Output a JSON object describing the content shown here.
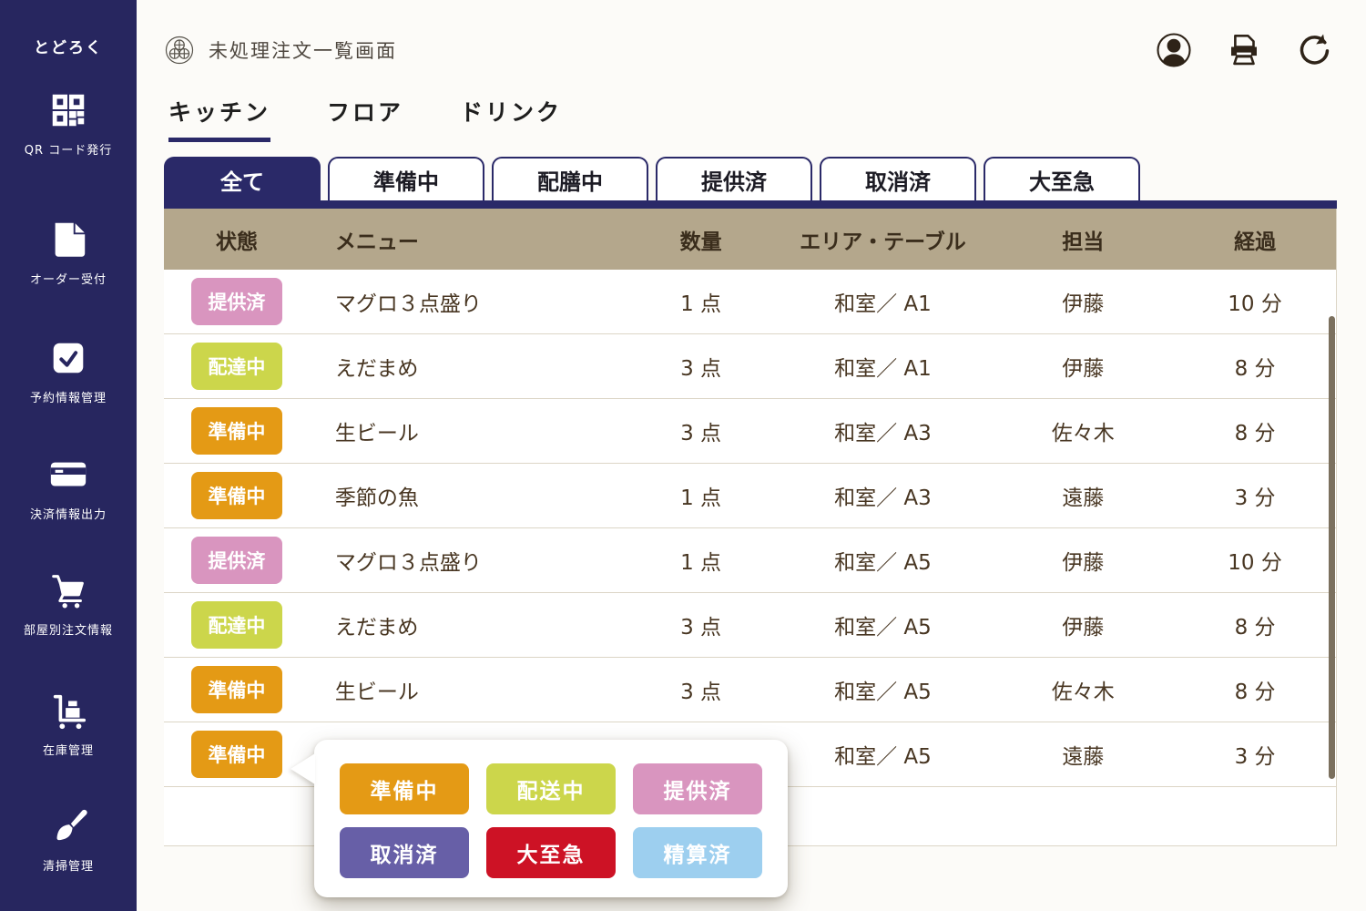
{
  "app_name": "とどろく",
  "sidebar": {
    "items": [
      {
        "icon": "qr-code-icon",
        "label": "QR コード発行"
      },
      {
        "icon": "order-document-icon",
        "label": "オーダー受付"
      },
      {
        "icon": "reservation-check-icon",
        "label": "予約情報管理"
      },
      {
        "icon": "payment-card-icon",
        "label": "決済情報出力"
      },
      {
        "icon": "room-order-cart-icon",
        "label": "部屋別注文情報"
      },
      {
        "icon": "inventory-trolley-icon",
        "label": "在庫管理"
      },
      {
        "icon": "cleaning-brush-icon",
        "label": "清掃管理"
      }
    ]
  },
  "header": {
    "title": "未処理注文一覧画面",
    "action_icons": [
      "user-avatar-icon",
      "printer-icon",
      "refresh-icon"
    ]
  },
  "category_tabs": {
    "items": [
      {
        "label": "キッチン",
        "active": true
      },
      {
        "label": "フロア",
        "active": false
      },
      {
        "label": "ドリンク",
        "active": false
      }
    ]
  },
  "status_filter_tabs": {
    "items": [
      {
        "label": "全て",
        "active": true
      },
      {
        "label": "準備中",
        "active": false
      },
      {
        "label": "配膳中",
        "active": false
      },
      {
        "label": "提供済",
        "active": false
      },
      {
        "label": "取消済",
        "active": false
      },
      {
        "label": "大至急",
        "active": false
      }
    ]
  },
  "table": {
    "columns": [
      "状態",
      "メニュー",
      "数量",
      "エリア・テーブル",
      "担当",
      "経過"
    ],
    "rows": [
      {
        "status": "提供済",
        "status_color": "#d995bf",
        "menu": "マグロ３点盛り",
        "qty": "1 点",
        "area": "和室／ A1",
        "staff": "伊藤",
        "elapsed": "10 分"
      },
      {
        "status": "配達中",
        "status_color": "#ccd64b",
        "menu": "えだまめ",
        "qty": "3 点",
        "area": "和室／ A1",
        "staff": "伊藤",
        "elapsed": "8 分"
      },
      {
        "status": "準備中",
        "status_color": "#e49a15",
        "menu": "生ビール",
        "qty": "3 点",
        "area": "和室／ A3",
        "staff": "佐々木",
        "elapsed": "8 分"
      },
      {
        "status": "準備中",
        "status_color": "#e49a15",
        "menu": "季節の魚",
        "qty": "1 点",
        "area": "和室／ A3",
        "staff": "遠藤",
        "elapsed": "3 分"
      },
      {
        "status": "提供済",
        "status_color": "#d995bf",
        "menu": "マグロ３点盛り",
        "qty": "1 点",
        "area": "和室／ A5",
        "staff": "伊藤",
        "elapsed": "10 分"
      },
      {
        "status": "配達中",
        "status_color": "#ccd64b",
        "menu": "えだまめ",
        "qty": "3 点",
        "area": "和室／ A5",
        "staff": "伊藤",
        "elapsed": "8 分"
      },
      {
        "status": "準備中",
        "status_color": "#e49a15",
        "menu": "生ビール",
        "qty": "3 点",
        "area": "和室／ A5",
        "staff": "佐々木",
        "elapsed": "8 分"
      },
      {
        "status": "準備中",
        "status_color": "#e49a15",
        "menu": "",
        "qty": "",
        "area": "和室／ A5",
        "staff": "遠藤",
        "elapsed": "3 分"
      }
    ]
  },
  "status_popup": {
    "buttons": [
      {
        "label": "準備中",
        "color": "#e49a15"
      },
      {
        "label": "配送中",
        "color": "#ccd64b"
      },
      {
        "label": "提供済",
        "color": "#d995bf"
      },
      {
        "label": "取消済",
        "color": "#675fa7"
      },
      {
        "label": "大至急",
        "color": "#cd1225"
      },
      {
        "label": "精算済",
        "color": "#9dcfef"
      }
    ]
  },
  "colors": {
    "sidebar_navy": "#27265f",
    "accent_navy": "#2a2968",
    "table_header_tan": "#b4a78c",
    "row_text_brown": "#483622",
    "scrollbar_taupe": "#7b705e"
  }
}
